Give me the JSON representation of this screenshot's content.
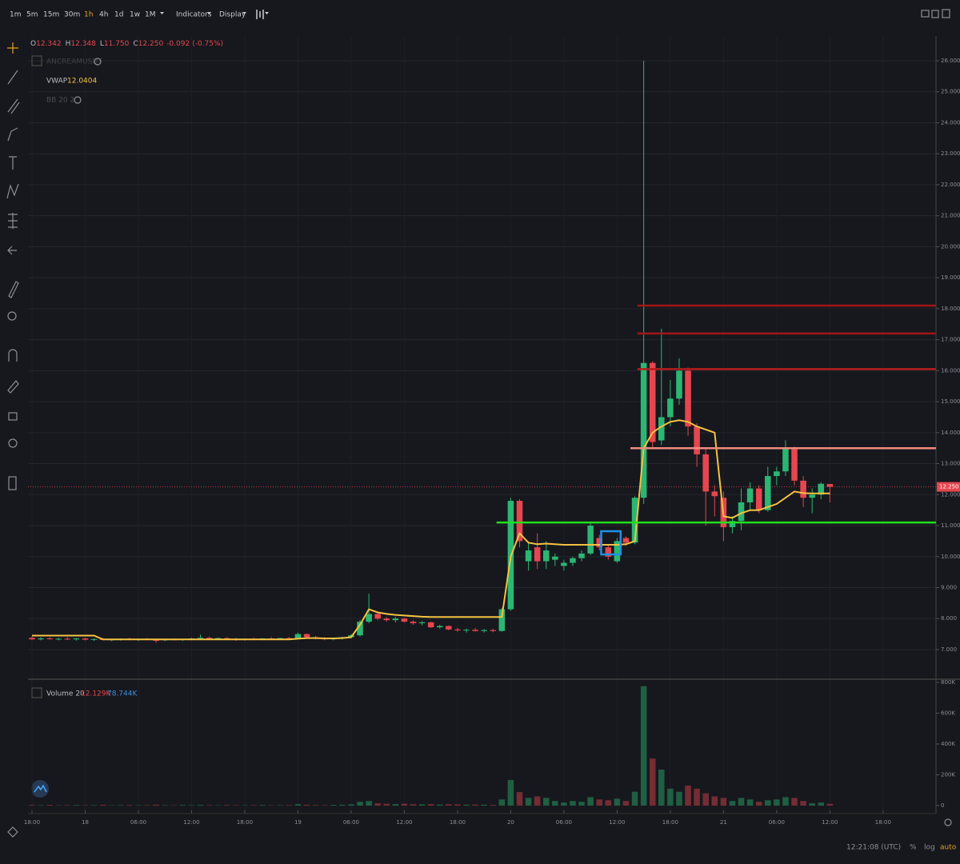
{
  "toolbar": {
    "intervals": [
      "1m",
      "5m",
      "15m",
      "30m",
      "1h",
      "4h",
      "1d",
      "1w",
      "1M"
    ],
    "menus": [
      "Indicators",
      "Display"
    ]
  },
  "legend": {
    "ohlc": [
      {
        "label": "O",
        "value": "12.342"
      },
      {
        "label": "H",
        "value": "12.348"
      },
      {
        "label": "L",
        "value": "11.750"
      },
      {
        "label": "C",
        "value": "12.250"
      }
    ],
    "change": "-0.092",
    "change_pct": "(-0.75%)",
    "symbol": "ANCREAMUSDT",
    "vwap_name": "VWAP",
    "vwap_value": "12.0404",
    "bb_name": "BB 20 2",
    "volume_name": "Volume 20",
    "volume_value": "12.129K",
    "volume_ma": "78.744K"
  },
  "footer": {
    "clock": "12:21:08 (UTC)",
    "percent": "%",
    "log": "log",
    "auto": "auto"
  },
  "chart_data": {
    "type": "candlestick",
    "up_color": "#2bb673",
    "down_color": "#e5464f",
    "vwap_color": "#f5c242",
    "grid": true,
    "x": [
      0,
      1,
      2,
      3,
      4,
      5,
      6,
      7,
      8,
      9,
      10,
      11,
      12,
      13,
      14,
      15,
      16,
      17,
      18,
      19,
      20,
      21,
      22,
      23,
      24,
      25,
      26,
      27,
      28,
      29,
      30,
      31,
      32,
      33,
      34,
      35,
      36,
      37,
      38,
      39,
      40,
      41,
      42,
      43,
      44,
      45,
      46,
      47,
      48,
      49,
      50,
      51,
      52,
      53,
      54,
      55,
      56,
      57,
      58,
      59,
      60,
      61,
      62,
      63,
      64,
      65,
      66,
      67,
      68,
      69,
      70,
      71,
      72,
      73,
      74,
      75,
      76,
      77,
      78,
      79,
      80,
      81,
      82,
      83,
      84,
      85,
      86,
      87,
      88,
      89,
      90
    ],
    "open": [
      7.38,
      7.33,
      7.36,
      7.34,
      7.35,
      7.33,
      7.36,
      7.32,
      7.34,
      7.31,
      7.33,
      7.35,
      7.32,
      7.34,
      7.31,
      7.3,
      7.33,
      7.31,
      7.34,
      7.36,
      7.38,
      7.35,
      7.37,
      7.34,
      7.32,
      7.35,
      7.33,
      7.36,
      7.34,
      7.37,
      7.35,
      7.5,
      7.4,
      7.36,
      7.33,
      7.36,
      7.4,
      7.46,
      7.9,
      8.15,
      8.0,
      7.95,
      8.0,
      7.9,
      7.85,
      7.88,
      7.72,
      7.76,
      7.65,
      7.62,
      7.64,
      7.6,
      7.63,
      7.6,
      8.3,
      11.8,
      9.85,
      10.3,
      9.85,
      9.9,
      9.7,
      9.8,
      9.95,
      10.1,
      10.6,
      10.3,
      9.85,
      10.6,
      10.45,
      11.9,
      16.25,
      13.75,
      14.5,
      15.1,
      16.0,
      14.2,
      13.3,
      12.1,
      11.9,
      10.95,
      11.15,
      11.75,
      12.2,
      11.5,
      12.6,
      12.75,
      13.5,
      12.45,
      11.9,
      12.0,
      12.342
    ],
    "high": [
      7.42,
      7.4,
      7.4,
      7.38,
      7.4,
      7.37,
      7.38,
      7.36,
      7.37,
      7.35,
      7.36,
      7.38,
      7.35,
      7.37,
      7.34,
      7.35,
      7.36,
      7.35,
      7.38,
      7.48,
      7.42,
      7.39,
      7.4,
      7.38,
      7.36,
      7.38,
      7.37,
      7.4,
      7.38,
      7.41,
      7.55,
      7.52,
      7.44,
      7.4,
      7.38,
      7.42,
      7.5,
      7.95,
      8.8,
      8.2,
      8.05,
      8.05,
      8.02,
      7.95,
      7.92,
      7.9,
      7.8,
      7.78,
      7.7,
      7.68,
      7.7,
      7.66,
      7.67,
      8.35,
      11.9,
      11.85,
      10.45,
      10.75,
      10.5,
      10.1,
      9.9,
      10.0,
      10.2,
      11.1,
      10.7,
      10.4,
      10.6,
      10.65,
      11.95,
      26.0,
      16.3,
      17.35,
      15.7,
      16.4,
      16.1,
      14.3,
      13.5,
      12.3,
      12.1,
      11.3,
      12.2,
      12.4,
      12.3,
      12.9,
      12.9,
      13.75,
      13.55,
      12.6,
      12.2,
      12.4,
      12.348
    ],
    "low": [
      7.3,
      7.3,
      7.32,
      7.3,
      7.31,
      7.29,
      7.3,
      7.28,
      7.3,
      7.27,
      7.29,
      7.3,
      7.28,
      7.3,
      7.22,
      7.27,
      7.3,
      7.28,
      7.3,
      7.33,
      7.34,
      7.3,
      7.33,
      7.28,
      7.29,
      7.31,
      7.3,
      7.32,
      7.3,
      7.33,
      7.34,
      7.38,
      7.33,
      7.3,
      7.3,
      7.33,
      7.36,
      7.42,
      7.85,
      7.95,
      7.9,
      7.88,
      7.88,
      7.8,
      7.78,
      7.7,
      7.68,
      7.62,
      7.58,
      7.55,
      7.58,
      7.55,
      7.56,
      7.58,
      8.25,
      10.3,
      9.55,
      9.6,
      9.6,
      9.7,
      9.55,
      9.7,
      9.85,
      10.05,
      10.2,
      9.9,
      9.8,
      10.35,
      10.4,
      11.7,
      13.5,
      13.6,
      14.2,
      14.9,
      13.9,
      12.9,
      11.0,
      11.3,
      10.5,
      10.75,
      10.85,
      11.5,
      11.4,
      11.45,
      12.3,
      12.6,
      12.3,
      11.6,
      11.4,
      11.85,
      11.75
    ],
    "close": [
      7.33,
      7.36,
      7.34,
      7.35,
      7.33,
      7.36,
      7.32,
      7.34,
      7.31,
      7.33,
      7.35,
      7.32,
      7.34,
      7.31,
      7.3,
      7.33,
      7.31,
      7.34,
      7.36,
      7.38,
      7.35,
      7.37,
      7.34,
      7.32,
      7.35,
      7.33,
      7.36,
      7.34,
      7.37,
      7.35,
      7.5,
      7.4,
      7.36,
      7.33,
      7.36,
      7.4,
      7.46,
      7.9,
      8.15,
      8.0,
      7.95,
      8.0,
      7.9,
      7.85,
      7.88,
      7.72,
      7.76,
      7.65,
      7.62,
      7.64,
      7.6,
      7.63,
      7.6,
      8.3,
      11.8,
      10.5,
      10.2,
      9.85,
      10.2,
      10.0,
      9.8,
      9.95,
      10.1,
      11.0,
      10.3,
      10.0,
      10.5,
      10.45,
      11.9,
      16.25,
      13.7,
      14.5,
      15.1,
      16.0,
      14.2,
      13.3,
      12.1,
      11.95,
      10.95,
      11.15,
      11.75,
      12.2,
      11.5,
      12.6,
      12.75,
      13.5,
      12.45,
      11.9,
      12.0,
      12.35,
      12.25
    ],
    "vwap": [
      7.45,
      7.45,
      7.45,
      7.45,
      7.45,
      7.45,
      7.45,
      7.45,
      7.33,
      7.33,
      7.33,
      7.33,
      7.33,
      7.33,
      7.33,
      7.33,
      7.33,
      7.33,
      7.33,
      7.33,
      7.33,
      7.33,
      7.33,
      7.33,
      7.33,
      7.33,
      7.33,
      7.33,
      7.33,
      7.33,
      7.35,
      7.37,
      7.37,
      7.36,
      7.36,
      7.37,
      7.4,
      7.8,
      8.3,
      8.2,
      8.15,
      8.12,
      8.1,
      8.08,
      8.06,
      8.05,
      8.05,
      8.05,
      8.05,
      8.05,
      8.05,
      8.05,
      8.05,
      8.05,
      10.0,
      10.75,
      10.45,
      10.4,
      10.42,
      10.4,
      10.38,
      10.38,
      10.38,
      10.38,
      10.38,
      10.38,
      10.38,
      10.4,
      10.5,
      13.5,
      14.0,
      14.2,
      14.35,
      14.4,
      14.35,
      14.2,
      14.1,
      14.0,
      11.3,
      11.25,
      11.4,
      11.5,
      11.5,
      11.6,
      11.7,
      11.9,
      12.1,
      12.05,
      12.04,
      12.04,
      12.0404
    ],
    "volume": [
      4000,
      3000,
      5000,
      2000,
      3000,
      4000,
      2000,
      3000,
      5000,
      2000,
      3000,
      4000,
      2000,
      3000,
      6000,
      3000,
      2000,
      4000,
      3000,
      5000,
      3000,
      2000,
      4000,
      3000,
      2000,
      3000,
      4000,
      2000,
      3000,
      4000,
      9000,
      6000,
      4000,
      3000,
      5000,
      6000,
      8000,
      25000,
      30000,
      15000,
      12000,
      10000,
      12000,
      9000,
      8000,
      10000,
      7000,
      9000,
      8000,
      6000,
      7000,
      6000,
      5000,
      40000,
      166000,
      88000,
      50000,
      60000,
      50000,
      30000,
      20000,
      30000,
      25000,
      55000,
      40000,
      35000,
      45000,
      30000,
      90000,
      775000,
      306000,
      234000,
      110000,
      90000,
      130000,
      110000,
      80000,
      60000,
      50000,
      30000,
      50000,
      40000,
      25000,
      35000,
      40000,
      55000,
      50000,
      30000,
      15000,
      20000,
      12129
    ],
    "xlim": [
      -0.45,
      101.97
    ],
    "xticks": [
      {
        "value": 0,
        "label": "18:00"
      },
      {
        "value": 6,
        "label": "18"
      },
      {
        "value": 12,
        "label": "06:00"
      },
      {
        "value": 18,
        "label": "12:00"
      },
      {
        "value": 24,
        "label": "18:00"
      },
      {
        "value": 30,
        "label": "19"
      },
      {
        "value": 36,
        "label": "06:00"
      },
      {
        "value": 42,
        "label": "12:00"
      },
      {
        "value": 48,
        "label": "18:00"
      },
      {
        "value": 54,
        "label": "20"
      },
      {
        "value": 60,
        "label": "06:00"
      },
      {
        "value": 66,
        "label": "12:00"
      },
      {
        "value": 72,
        "label": "18:00"
      },
      {
        "value": 78,
        "label": "21"
      },
      {
        "value": 84,
        "label": "06:00"
      },
      {
        "value": 90,
        "label": "12:00"
      },
      {
        "value": 96,
        "label": "18:00"
      }
    ],
    "ylim": [
      6.07,
      26.8
    ],
    "yticks": [
      {
        "value": 7,
        "label": "7.000"
      },
      {
        "value": 8,
        "label": "8.000"
      },
      {
        "value": 9,
        "label": "9.000"
      },
      {
        "value": 10,
        "label": "10.000"
      },
      {
        "value": 11,
        "label": "11.000"
      },
      {
        "value": 12,
        "label": "12.000"
      },
      {
        "value": 13,
        "label": "13.000"
      },
      {
        "value": 14,
        "label": "14.000"
      },
      {
        "value": 15,
        "label": "15.000"
      },
      {
        "value": 16,
        "label": "16.000"
      },
      {
        "value": 17,
        "label": "17.000"
      },
      {
        "value": 18,
        "label": "18.000"
      },
      {
        "value": 19,
        "label": "19.000"
      },
      {
        "value": 20,
        "label": "20.000"
      },
      {
        "value": 21,
        "label": "21.000"
      },
      {
        "value": 22,
        "label": "22.000"
      },
      {
        "value": 23,
        "label": "23.000"
      },
      {
        "value": 24,
        "label": "24.000"
      },
      {
        "value": 25,
        "label": "25.000"
      },
      {
        "value": 26,
        "label": "26.000"
      }
    ],
    "volume_ylim": [
      -31000,
      815600
    ],
    "volume_yticks": [
      0,
      {
        "value": 200000,
        "label": "200K"
      },
      {
        "value": 400000,
        "label": "400K"
      },
      {
        "value": 600000,
        "label": "600K"
      },
      {
        "value": 800000,
        "label": "800K"
      }
    ],
    "last_price": {
      "value": 12.25,
      "label": "12.250",
      "color": "#e5464f"
    },
    "hlines": [
      {
        "value": 18.1,
        "from": 68.3,
        "color": "#a31515"
      },
      {
        "value": 17.2,
        "from": 68.3,
        "color": "#a31515"
      },
      {
        "value": 16.05,
        "from": 68.3,
        "color": "#b71c1c"
      },
      {
        "value": 13.5,
        "from": 67.5,
        "color": "#f08a7e"
      },
      {
        "value": 11.1,
        "from": 52.4,
        "color": "#22e01e"
      }
    ],
    "box": {
      "x": [
        64.2,
        66.4
      ],
      "y": [
        10.07,
        10.82
      ],
      "color": "#1e90e8"
    }
  }
}
